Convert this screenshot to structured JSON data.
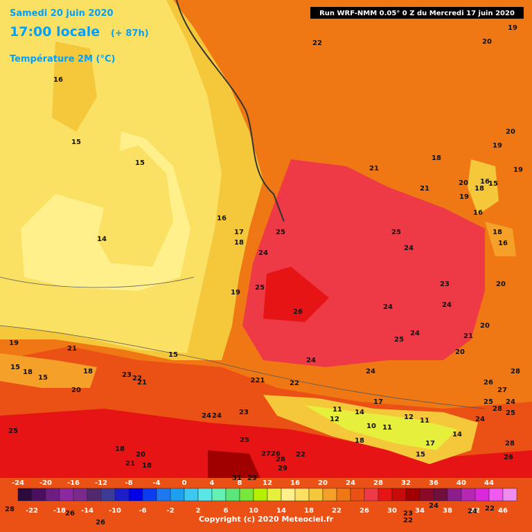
{
  "header": {
    "date": "Samedi 20 juin 2020",
    "time": "17:00 locale",
    "lead": "(+ 87h)",
    "parameter": "Température 2M (°C)",
    "run": "Run WRF-NMM 0.05° 0 Z du Mercredi 17 juin 2020"
  },
  "footer": {
    "copyright": "Copyright (c) 2020 Meteociel.fr"
  },
  "colorbar": {
    "ticks": [
      -24,
      -22,
      -20,
      -18,
      -16,
      -14,
      -12,
      -10,
      -8,
      -6,
      -4,
      -2,
      0,
      2,
      4,
      6,
      8,
      10,
      12,
      14,
      16,
      18,
      20,
      22,
      24,
      26,
      28,
      30,
      32,
      34,
      36,
      38,
      40,
      42,
      44,
      46
    ],
    "colors": [
      "#2d0a3c",
      "#4b0f5f",
      "#6e1e82",
      "#8c28a0",
      "#7a2a8c",
      "#50286e",
      "#3c3c96",
      "#1e1ec8",
      "#0000e6",
      "#0a3cf0",
      "#1e78f0",
      "#1ea0f0",
      "#3cc8f0",
      "#5ae6e6",
      "#64f0b4",
      "#5ae678",
      "#78e63c",
      "#b4f000",
      "#e6f03c",
      "#fff08c",
      "#fae164",
      "#f5c83c",
      "#f5a028",
      "#f07814",
      "#eb5014",
      "#ee3a46",
      "#e61414",
      "#c80a0a",
      "#a00000",
      "#8c0a28",
      "#6e0f3c",
      "#8c1e8c",
      "#b428b4",
      "#dc28dc",
      "#f05af0",
      "#f08cf0"
    ]
  },
  "contour_labels": [
    16,
    15,
    15,
    14,
    16,
    17,
    18,
    24,
    25,
    19,
    25,
    26,
    22,
    21,
    21,
    25,
    24,
    23,
    24,
    24,
    25,
    24,
    24,
    24,
    22,
    221,
    19,
    20,
    20,
    19,
    19,
    18,
    20,
    19,
    18,
    16,
    15,
    16,
    18,
    16,
    20,
    20,
    21,
    20,
    19,
    21,
    15,
    18,
    15,
    18,
    20,
    23,
    22,
    21,
    15,
    24,
    24,
    23,
    25,
    25,
    18,
    20,
    21,
    18,
    27,
    26,
    28,
    29,
    22,
    31,
    29,
    28,
    26,
    27,
    25,
    28,
    24,
    25,
    24,
    28,
    26,
    17,
    11,
    12,
    14,
    10,
    11,
    12,
    11,
    14,
    17,
    15,
    18,
    28,
    26,
    26,
    24,
    23,
    22,
    24,
    22
  ]
}
